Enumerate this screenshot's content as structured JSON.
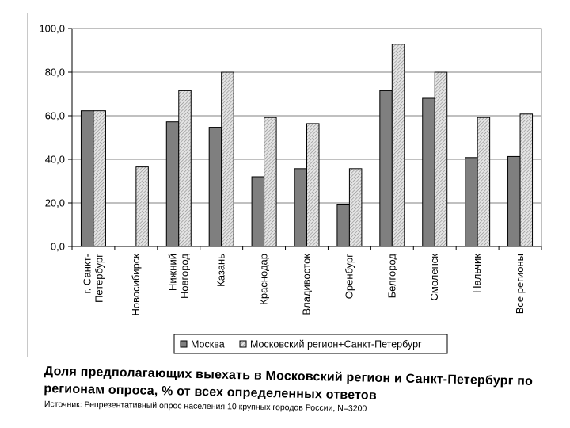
{
  "chart_data": {
    "type": "bar",
    "categories": [
      "г. Санкт-Петербург",
      "Новосибирск",
      "Нижний Новгород",
      "Казань",
      "Краснодар",
      "Владивосток",
      "Оренбург",
      "Белгород",
      "Смоленск",
      "Нальчик",
      "Все регионы"
    ],
    "category_label_lines": [
      [
        "г. Санкт-",
        "Петербург"
      ],
      [
        "Новосибирск"
      ],
      [
        "Нижний",
        "Новгород"
      ],
      [
        "Казань"
      ],
      [
        "Краснодар"
      ],
      [
        "Владивосток"
      ],
      [
        "Оренбург"
      ],
      [
        "Белгород"
      ],
      [
        "Смоленск"
      ],
      [
        "Нальчик"
      ],
      [
        "Все регионы"
      ]
    ],
    "series": [
      {
        "name": "Москва",
        "values": [
          62.3,
          null,
          57.2,
          54.7,
          32.0,
          35.7,
          19.1,
          71.5,
          68.0,
          40.8,
          41.3
        ],
        "color": "#7f7f7f",
        "pattern": "solid"
      },
      {
        "name": "Московский регион+Санкт-Петербург",
        "values": [
          62.3,
          36.5,
          71.5,
          80.0,
          59.2,
          56.4,
          35.7,
          92.8,
          80.0,
          59.2,
          60.8
        ],
        "color": "#c8c8c8",
        "pattern": "hatched"
      }
    ],
    "ylim": [
      0,
      100
    ],
    "yticks": [
      "0,0",
      "20,0",
      "40,0",
      "60,0",
      "80,0",
      "100,0"
    ],
    "ytick_values": [
      0,
      20,
      40,
      60,
      80,
      100
    ],
    "grid": true,
    "legend_position": "bottom-right"
  },
  "caption": {
    "title": "Доля предполагающих выехать в Московский регион и Санкт-Петербург по регионам опроса, % от всех определенных ответов",
    "source": "Источник: Репрезентативный опрос населения 10 крупных городов России, N=3200"
  }
}
